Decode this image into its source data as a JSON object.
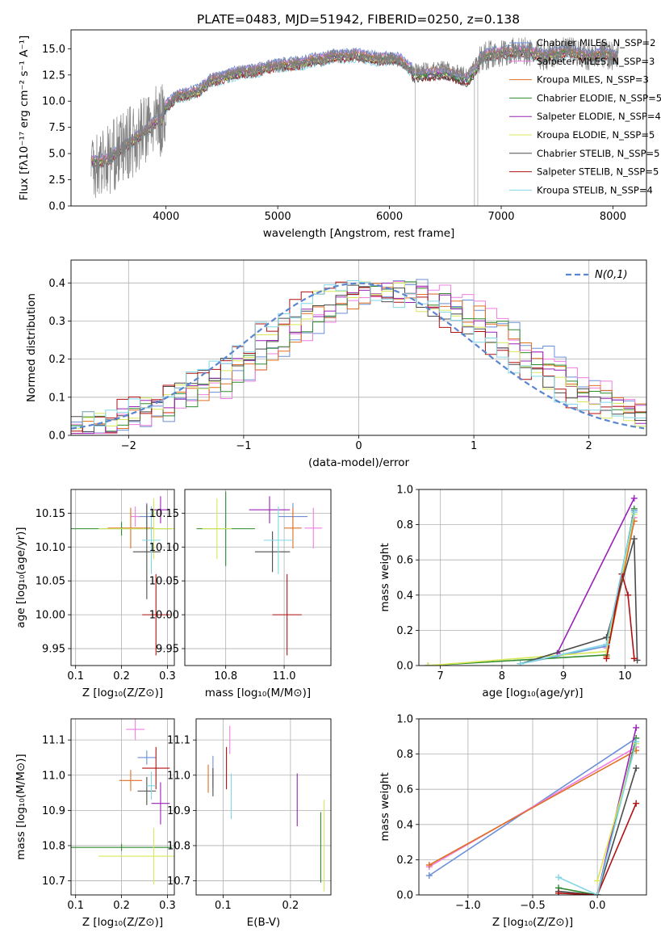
{
  "figure_title": "PLATE=0483, MJD=51942, FIBERID=0250, z=0.138",
  "colors": {
    "c1": "#6a8fd8",
    "c2": "#f07de0",
    "c3": "#e07020",
    "c4": "#2e8b2e",
    "c5": "#9a22b8",
    "c6": "#d8e85a",
    "c7": "#4b4b4b",
    "c8": "#b01010",
    "c9": "#7fd6e6",
    "data": "#808080",
    "gauss": "#5a86d0"
  },
  "chart_data": [
    {
      "type": "line",
      "title": "PLATE=0483, MJD=51942, FIBERID=0250, z=0.138",
      "xlabel": "wavelength [Angstrom, rest frame]",
      "ylabel": "Flux [fλ10⁻¹⁷ erg cm⁻² s⁻¹ A⁻¹]",
      "xlim": [
        3150,
        8300
      ],
      "ylim": [
        0,
        16.8
      ],
      "xticks": [
        4000,
        5000,
        6000,
        7000,
        8000
      ],
      "yticks": [
        0.0,
        2.5,
        5.0,
        7.5,
        10.0,
        12.5,
        15.0
      ],
      "legend_position": "top-right",
      "legend": [
        "Chabrier MILES, N_SSP=2",
        "Salpeter MILES, N_SSP=3",
        "Kroupa MILES, N_SSP=3",
        "Chabrier ELODIE, N_SSP=5",
        "Salpeter ELODIE, N_SSP=4",
        "Kroupa ELODIE, N_SSP=5",
        "Chabrier STELIB, N_SSP=5",
        "Salpeter STELIB, N_SSP=5",
        "Kroupa STELIB, N_SSP=4"
      ],
      "data_x": [
        3330,
        3400,
        3500,
        3600,
        3700,
        3800,
        3900,
        3950,
        4000,
        4100,
        4200,
        4300,
        4400,
        4500,
        4600,
        4700,
        4800,
        4900,
        5000,
        5100,
        5200,
        5300,
        5400,
        5500,
        5600,
        5700,
        5800,
        5900,
        6000,
        6100,
        6200,
        6300,
        6400,
        6500,
        6600,
        6700,
        6800,
        6900,
        7000,
        7100,
        7200,
        7300,
        7400,
        7500,
        7600,
        7700,
        7800,
        7900,
        8000,
        8050
      ],
      "data_y": [
        4.3,
        4.2,
        4.5,
        5.5,
        6.2,
        7.0,
        8.0,
        8.0,
        9.5,
        10.5,
        10.7,
        11.0,
        12.0,
        12.2,
        12.6,
        12.8,
        12.9,
        13.2,
        13.4,
        13.5,
        13.6,
        13.9,
        14.0,
        14.3,
        14.3,
        14.4,
        14.2,
        14.0,
        14.1,
        13.9,
        13.0,
        13.0,
        13.1,
        13.2,
        12.8,
        12.5,
        14.0,
        14.5,
        14.6,
        14.7,
        14.8,
        14.5,
        14.3,
        14.6,
        14.8,
        14.5,
        14.2,
        14.6,
        14.3,
        14.1
      ]
    },
    {
      "type": "bar",
      "xlabel": "(data-model)/error",
      "ylabel": "Normed distribution",
      "xlim": [
        -2.5,
        2.5
      ],
      "ylim": [
        0,
        0.46
      ],
      "xticks": [
        -2,
        -1,
        0,
        1,
        2
      ],
      "yticks": [
        0.0,
        0.1,
        0.2,
        0.3,
        0.4
      ],
      "legend": [
        "N(0,1)"
      ],
      "bin_edges": [
        -2.5,
        -2.4,
        -2.3,
        -2.2,
        -2.1,
        -2.0,
        -1.9,
        -1.8,
        -1.7,
        -1.6,
        -1.5,
        -1.4,
        -1.3,
        -1.2,
        -1.1,
        -1.0,
        -0.9,
        -0.8,
        -0.7,
        -0.6,
        -0.5,
        -0.4,
        -0.3,
        -0.2,
        -0.1,
        0.0,
        0.1,
        0.2,
        0.3,
        0.4,
        0.5,
        0.6,
        0.7,
        0.8,
        0.9,
        1.0,
        1.1,
        1.2,
        1.3,
        1.4,
        1.5,
        1.6,
        1.7,
        1.8,
        1.9,
        2.0,
        2.1,
        2.2,
        2.3,
        2.4,
        2.5
      ],
      "hist_base": [
        0.02,
        0.025,
        0.03,
        0.035,
        0.045,
        0.055,
        0.065,
        0.075,
        0.085,
        0.1,
        0.11,
        0.125,
        0.145,
        0.16,
        0.18,
        0.2,
        0.22,
        0.245,
        0.27,
        0.29,
        0.31,
        0.33,
        0.35,
        0.36,
        0.37,
        0.375,
        0.38,
        0.385,
        0.38,
        0.375,
        0.365,
        0.355,
        0.34,
        0.325,
        0.31,
        0.29,
        0.27,
        0.25,
        0.23,
        0.21,
        0.19,
        0.17,
        0.15,
        0.13,
        0.115,
        0.1,
        0.085,
        0.07,
        0.06,
        0.05
      ]
    },
    {
      "type": "scatter",
      "xlabel": "Z [log₁₀(Z/Z⊙)]",
      "ylabel": "age  [log₁₀(age/yr)]",
      "xlim": [
        0.09,
        0.315
      ],
      "ylim": [
        9.925,
        10.185
      ],
      "xticks": [
        0.1,
        0.2,
        0.3
      ],
      "yticks": [
        9.95,
        10.0,
        10.05,
        10.1,
        10.15
      ],
      "points": [
        {
          "x": 0.255,
          "y": 10.145,
          "xerr": 0.02,
          "yerr": 0.02,
          "c": "c1"
        },
        {
          "x": 0.23,
          "y": 10.145,
          "xerr": 0.01,
          "yerr": 0.015,
          "c": "c2"
        },
        {
          "x": 0.22,
          "y": 10.128,
          "xerr": 0.05,
          "yerr": 0.03,
          "c": "c3"
        },
        {
          "x": 0.2,
          "y": 10.127,
          "xerr": 0.11,
          "yerr": 0.01,
          "c": "c4"
        },
        {
          "x": 0.285,
          "y": 10.155,
          "xerr": 0.02,
          "yerr": 0.02,
          "c": "c5"
        },
        {
          "x": 0.27,
          "y": 10.127,
          "xerr": 0.12,
          "yerr": 0.045,
          "c": "c6"
        },
        {
          "x": 0.255,
          "y": 10.093,
          "xerr": 0.03,
          "yerr": 0.07,
          "c": "c7"
        },
        {
          "x": 0.275,
          "y": 10.0,
          "xerr": 0.03,
          "yerr": 0.06,
          "c": "c8"
        },
        {
          "x": 0.265,
          "y": 10.11,
          "xerr": 0.02,
          "yerr": 0.05,
          "c": "c9"
        }
      ]
    },
    {
      "type": "scatter",
      "xlabel": "mass [log₁₀(M/M⊙)]",
      "ylabel": "",
      "xlim": [
        10.66,
        11.16
      ],
      "ylim": [
        9.925,
        10.185
      ],
      "xticks": [
        10.8,
        11.0
      ],
      "yticks": [
        9.95,
        10.0,
        10.05,
        10.1,
        10.15
      ],
      "points": [
        {
          "x": 11.03,
          "y": 10.145,
          "xerr": 0.05,
          "yerr": 0.02,
          "c": "c1"
        },
        {
          "x": 11.1,
          "y": 10.128,
          "xerr": 0.03,
          "yerr": 0.03,
          "c": "c2"
        },
        {
          "x": 11.03,
          "y": 10.128,
          "xerr": 0.03,
          "yerr": 0.03,
          "c": "c3"
        },
        {
          "x": 10.8,
          "y": 10.127,
          "xerr": 0.1,
          "yerr": 0.055,
          "c": "c4"
        },
        {
          "x": 10.95,
          "y": 10.155,
          "xerr": 0.07,
          "yerr": 0.02,
          "c": "c5"
        },
        {
          "x": 10.77,
          "y": 10.127,
          "xerr": 0.05,
          "yerr": 0.045,
          "c": "c6"
        },
        {
          "x": 10.96,
          "y": 10.093,
          "xerr": 0.06,
          "yerr": 0.03,
          "c": "c7"
        },
        {
          "x": 11.01,
          "y": 10.0,
          "xerr": 0.05,
          "yerr": 0.06,
          "c": "c8"
        },
        {
          "x": 10.98,
          "y": 10.11,
          "xerr": 0.05,
          "yerr": 0.05,
          "c": "c9"
        }
      ]
    },
    {
      "type": "line",
      "xlabel": "age  [log₁₀(age/yr)]",
      "ylabel": "mass weight",
      "xlim": [
        6.65,
        10.35
      ],
      "ylim": [
        0,
        1.0
      ],
      "xticks": [
        7,
        8,
        9,
        10
      ],
      "yticks": [
        0.0,
        0.2,
        0.4,
        0.6,
        0.8,
        1.0
      ],
      "series": [
        {
          "c": "c1",
          "x": [
            8.3,
            9.7,
            10.15
          ],
          "y": [
            0.01,
            0.11,
            0.88
          ]
        },
        {
          "c": "c2",
          "x": [
            9.7,
            10.15
          ],
          "y": [
            0.1,
            0.84
          ]
        },
        {
          "c": "c3",
          "x": [
            9.7,
            10.15
          ],
          "y": [
            0.05,
            0.82
          ]
        },
        {
          "c": "c4",
          "x": [
            6.8,
            9.7,
            10.15
          ],
          "y": [
            0.0,
            0.06,
            0.89
          ]
        },
        {
          "c": "c5",
          "x": [
            8.9,
            10.15
          ],
          "y": [
            0.07,
            0.95
          ]
        },
        {
          "c": "c6",
          "x": [
            6.8,
            9.7,
            10.15
          ],
          "y": [
            0.0,
            0.08,
            0.86
          ]
        },
        {
          "c": "c7",
          "x": [
            8.3,
            9.7,
            10.15,
            10.2
          ],
          "y": [
            0.01,
            0.16,
            0.72,
            0.03
          ]
        },
        {
          "c": "c8",
          "x": [
            9.7,
            9.95,
            10.05,
            10.15
          ],
          "y": [
            0.04,
            0.52,
            0.4,
            0.04
          ]
        },
        {
          "c": "c9",
          "x": [
            8.3,
            9.7,
            10.15
          ],
          "y": [
            0.01,
            0.12,
            0.87
          ]
        }
      ]
    },
    {
      "type": "scatter",
      "xlabel": "Z [log₁₀(Z/Z⊙)]",
      "ylabel": "mass [log₁₀(M/M⊙)]",
      "xlim": [
        0.09,
        0.315
      ],
      "ylim": [
        10.66,
        11.16
      ],
      "xticks": [
        0.1,
        0.2,
        0.3
      ],
      "yticks": [
        10.7,
        10.8,
        10.9,
        11.0,
        11.1
      ],
      "points": [
        {
          "x": 0.255,
          "y": 11.05,
          "xerr": 0.02,
          "yerr": 0.02,
          "c": "c1"
        },
        {
          "x": 0.23,
          "y": 11.13,
          "xerr": 0.02,
          "yerr": 0.03,
          "c": "c2"
        },
        {
          "x": 0.22,
          "y": 10.985,
          "xerr": 0.025,
          "yerr": 0.03,
          "c": "c3"
        },
        {
          "x": 0.2,
          "y": 10.795,
          "xerr": 0.11,
          "yerr": 0.01,
          "c": "c4"
        },
        {
          "x": 0.285,
          "y": 10.92,
          "xerr": 0.02,
          "yerr": 0.06,
          "c": "c5"
        },
        {
          "x": 0.27,
          "y": 10.77,
          "xerr": 0.12,
          "yerr": 0.08,
          "c": "c6"
        },
        {
          "x": 0.255,
          "y": 10.955,
          "xerr": 0.02,
          "yerr": 0.04,
          "c": "c7"
        },
        {
          "x": 0.275,
          "y": 11.02,
          "xerr": 0.03,
          "yerr": 0.06,
          "c": "c8"
        },
        {
          "x": 0.265,
          "y": 10.97,
          "xerr": 0.01,
          "yerr": 0.04,
          "c": "c9"
        }
      ]
    },
    {
      "type": "scatter",
      "xlabel": "E(B-V)",
      "ylabel": "",
      "xlim": [
        0.06,
        0.26
      ],
      "ylim": [
        10.66,
        11.16
      ],
      "xticks": [
        0.1,
        0.2
      ],
      "yticks": [
        10.7,
        10.8,
        10.9,
        11.0,
        11.1
      ],
      "points": [
        {
          "x": 0.085,
          "y": 11.01,
          "xerr": 0.0,
          "yerr": 0.045,
          "c": "c1"
        },
        {
          "x": 0.11,
          "y": 11.1,
          "xerr": 0.0,
          "yerr": 0.04,
          "c": "c2"
        },
        {
          "x": 0.078,
          "y": 10.99,
          "xerr": 0.0,
          "yerr": 0.04,
          "c": "c3"
        },
        {
          "x": 0.245,
          "y": 10.795,
          "xerr": 0.0,
          "yerr": 0.1,
          "c": "c4"
        },
        {
          "x": 0.21,
          "y": 10.93,
          "xerr": 0.0,
          "yerr": 0.075,
          "c": "c5"
        },
        {
          "x": 0.25,
          "y": 10.8,
          "xerr": 0.0,
          "yerr": 0.13,
          "c": "c6"
        },
        {
          "x": 0.085,
          "y": 10.98,
          "xerr": 0.0,
          "yerr": 0.04,
          "c": "c7"
        },
        {
          "x": 0.105,
          "y": 11.02,
          "xerr": 0.0,
          "yerr": 0.06,
          "c": "c8"
        },
        {
          "x": 0.112,
          "y": 10.94,
          "xerr": 0.0,
          "yerr": 0.065,
          "c": "c9"
        }
      ]
    },
    {
      "type": "line",
      "xlabel": "Z [log₁₀(Z/Z⊙)]",
      "ylabel": "mass weight",
      "xlim": [
        -1.38,
        0.38
      ],
      "ylim": [
        0,
        1.0
      ],
      "xticks": [
        -1.0,
        -0.5,
        0.0
      ],
      "yticks": [
        0.0,
        0.2,
        0.4,
        0.6,
        0.8,
        1.0
      ],
      "series": [
        {
          "c": "c1",
          "x": [
            -1.3,
            0.3
          ],
          "y": [
            0.11,
            0.89
          ]
        },
        {
          "c": "c2",
          "x": [
            -1.3,
            0.3
          ],
          "y": [
            0.16,
            0.84
          ]
        },
        {
          "c": "c3",
          "x": [
            -1.3,
            0.3
          ],
          "y": [
            0.17,
            0.82
          ]
        },
        {
          "c": "c4",
          "x": [
            -0.3,
            0.0,
            0.3
          ],
          "y": [
            0.04,
            0.0,
            0.89
          ]
        },
        {
          "c": "c5",
          "x": [
            0.0,
            0.3
          ],
          "y": [
            0.0,
            0.95
          ]
        },
        {
          "c": "c6",
          "x": [
            0.0,
            0.3
          ],
          "y": [
            0.08,
            0.86
          ]
        },
        {
          "c": "c7",
          "x": [
            -0.3,
            0.0,
            0.3
          ],
          "y": [
            0.02,
            0.0,
            0.72
          ]
        },
        {
          "c": "c8",
          "x": [
            -0.3,
            0.0,
            0.3
          ],
          "y": [
            0.01,
            0.0,
            0.52
          ]
        },
        {
          "c": "c9",
          "x": [
            -0.3,
            0.0,
            0.3
          ],
          "y": [
            0.1,
            0.0,
            0.87
          ]
        }
      ]
    }
  ]
}
